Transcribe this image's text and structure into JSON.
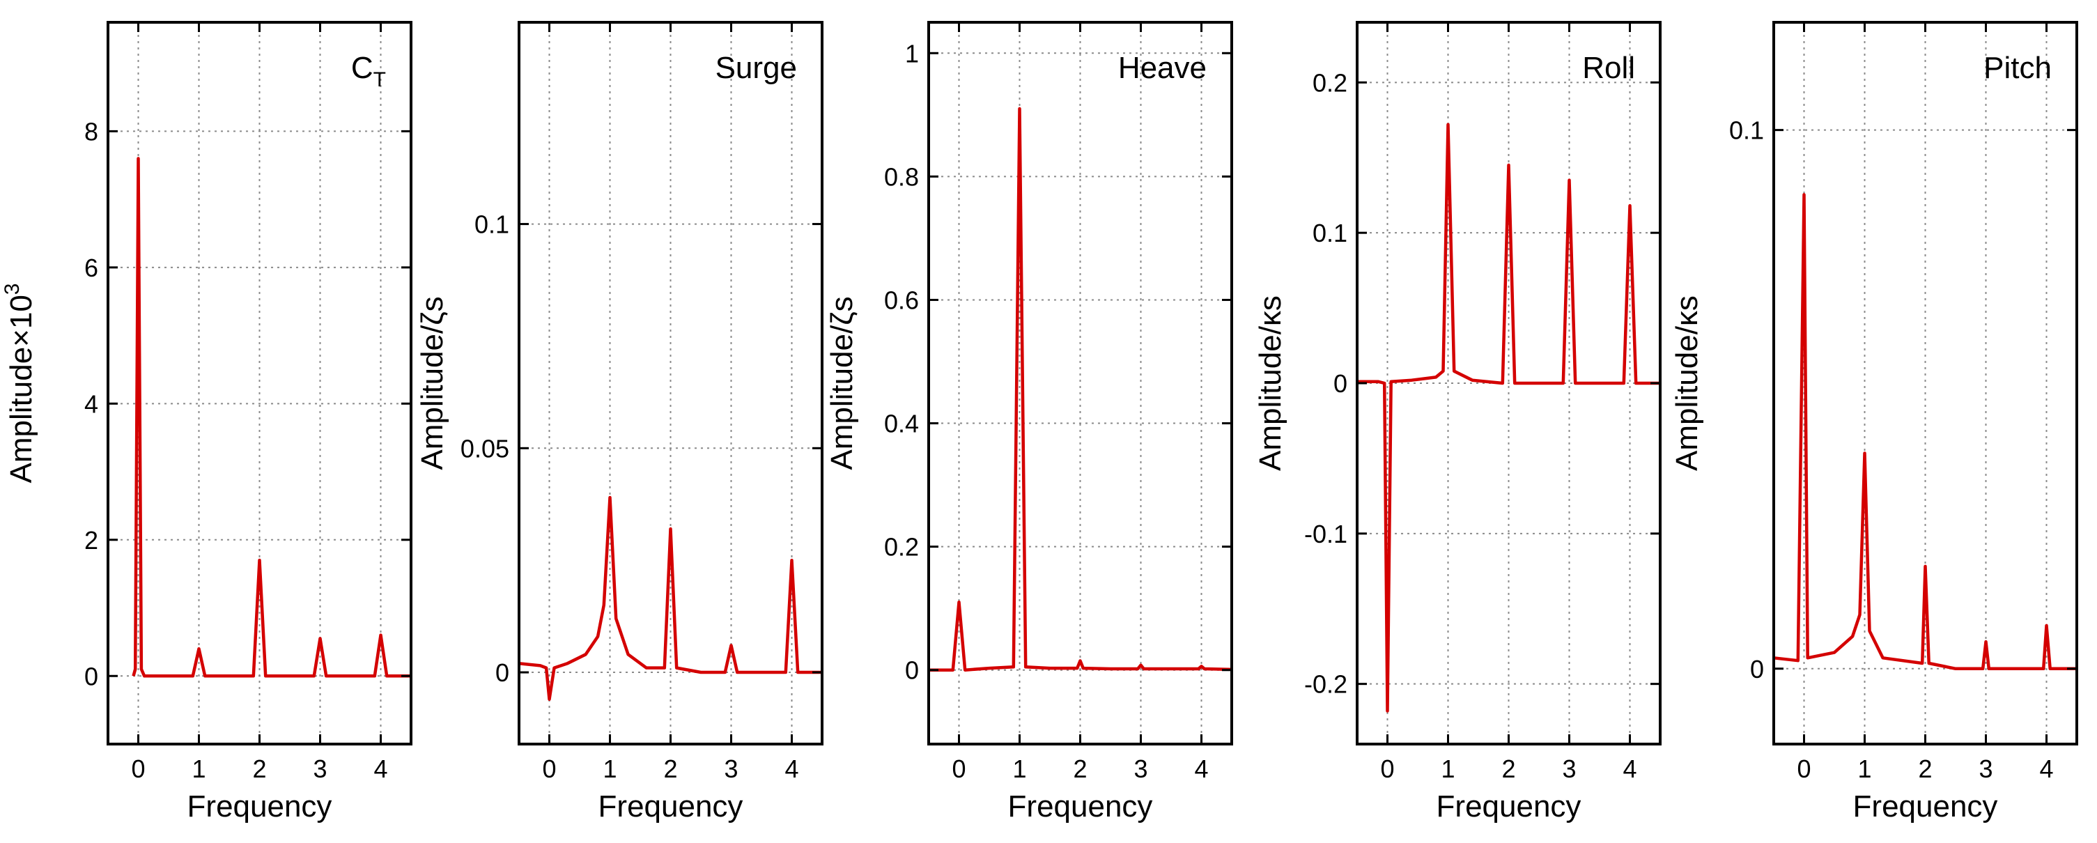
{
  "chart_data": [
    {
      "type": "line",
      "title": "C",
      "title_sub": "T",
      "xlabel": "Frequency",
      "ylabel": "Amplitude×10",
      "ylabel_sup": "3",
      "xlim": [
        -0.5,
        4.5
      ],
      "ylim": [
        -1,
        9.6
      ],
      "xticks": [
        0,
        1,
        2,
        3,
        4
      ],
      "xtick_labels": [
        "0",
        "1",
        "2",
        "3",
        "4"
      ],
      "yticks": [
        0,
        2,
        4,
        6,
        8
      ],
      "ytick_labels": [
        "0",
        "2",
        "4",
        "6",
        "8"
      ],
      "grid": true,
      "series": [
        {
          "name": "C_T",
          "color": "#d40000",
          "x": [
            -0.08,
            -0.05,
            0,
            0.05,
            0.1,
            0.9,
            1,
            1.1,
            1.9,
            2,
            2.1,
            2.9,
            3,
            3.1,
            3.9,
            4,
            4.1,
            4.5
          ],
          "y": [
            0,
            0.1,
            7.6,
            0.1,
            0,
            0,
            0.4,
            0,
            0,
            1.7,
            0,
            0,
            0.55,
            0,
            0,
            0.6,
            0,
            0
          ]
        }
      ]
    },
    {
      "type": "line",
      "title": "Surge",
      "xlabel": "Frequency",
      "ylabel": "Amplitude/ζs",
      "xlim": [
        -0.5,
        4.5
      ],
      "ylim": [
        -0.016,
        0.145
      ],
      "xticks": [
        0,
        1,
        2,
        3,
        4
      ],
      "xtick_labels": [
        "0",
        "1",
        "2",
        "3",
        "4"
      ],
      "yticks": [
        0,
        0.05,
        0.1
      ],
      "ytick_labels": [
        "0",
        "0.05",
        "0.1"
      ],
      "grid": true,
      "series": [
        {
          "name": "Surge",
          "color": "#d40000",
          "x": [
            -0.5,
            -0.15,
            -0.05,
            0,
            0.08,
            0.3,
            0.6,
            0.8,
            0.9,
            1,
            1.1,
            1.3,
            1.6,
            1.9,
            2,
            2.1,
            2.5,
            2.9,
            3,
            3.1,
            3.5,
            3.9,
            4,
            4.1,
            4.5
          ],
          "y": [
            0.002,
            0.0015,
            0.001,
            -0.006,
            0.001,
            0.002,
            0.004,
            0.008,
            0.015,
            0.039,
            0.012,
            0.004,
            0.001,
            0.001,
            0.032,
            0.001,
            0,
            0,
            0.006,
            0,
            0,
            0,
            0.025,
            0,
            0
          ]
        }
      ]
    },
    {
      "type": "line",
      "title": "Heave",
      "xlabel": "Frequency",
      "ylabel": "Amplitude/ζs",
      "xlim": [
        -0.5,
        4.5
      ],
      "ylim": [
        -0.12,
        1.05
      ],
      "xticks": [
        0,
        1,
        2,
        3,
        4
      ],
      "xtick_labels": [
        "0",
        "1",
        "2",
        "3",
        "4"
      ],
      "yticks": [
        0,
        0.2,
        0.4,
        0.6,
        0.8,
        1
      ],
      "ytick_labels": [
        "0",
        "0.2",
        "0.4",
        "0.6",
        "0.8",
        "1"
      ],
      "grid": true,
      "series": [
        {
          "name": "Heave",
          "color": "#d40000",
          "x": [
            -0.5,
            -0.1,
            0,
            0.1,
            0.5,
            0.9,
            1,
            1.1,
            1.5,
            1.95,
            2,
            2.05,
            2.5,
            2.95,
            3,
            3.05,
            3.5,
            3.95,
            4,
            4.05,
            4.5
          ],
          "y": [
            0,
            0,
            0.11,
            0,
            0.003,
            0.005,
            0.91,
            0.005,
            0.003,
            0.003,
            0.015,
            0.003,
            0.002,
            0.002,
            0.008,
            0.002,
            0.002,
            0.002,
            0.006,
            0.002,
            0.001
          ]
        }
      ]
    },
    {
      "type": "line",
      "title": "Roll",
      "xlabel": "Frequency",
      "ylabel": "Amplitude/κs",
      "xlim": [
        -0.5,
        4.5
      ],
      "ylim": [
        -0.24,
        0.24
      ],
      "xticks": [
        0,
        1,
        2,
        3,
        4
      ],
      "xtick_labels": [
        "0",
        "1",
        "2",
        "3",
        "4"
      ],
      "yticks": [
        -0.2,
        -0.1,
        0,
        0.1,
        0.2
      ],
      "ytick_labels": [
        "-0.2",
        "-0.1",
        "0",
        "0.1",
        "0.2"
      ],
      "grid": true,
      "series": [
        {
          "name": "Roll",
          "color": "#d40000",
          "x": [
            -0.5,
            -0.15,
            -0.05,
            0,
            0.06,
            0.4,
            0.8,
            0.92,
            1,
            1.1,
            1.4,
            1.9,
            2,
            2.1,
            2.9,
            3,
            3.1,
            3.9,
            4,
            4.1,
            4.5
          ],
          "y": [
            0.001,
            0.001,
            0,
            -0.218,
            0.001,
            0.002,
            0.004,
            0.008,
            0.172,
            0.008,
            0.002,
            0,
            0.145,
            0,
            0,
            0.135,
            0,
            0,
            0.118,
            0,
            0
          ]
        }
      ]
    },
    {
      "type": "line",
      "title": "Pitch",
      "xlabel": "Frequency",
      "ylabel": "Amplitude/κs",
      "xlim": [
        -0.5,
        4.5
      ],
      "ylim": [
        -0.014,
        0.12
      ],
      "xticks": [
        0,
        1,
        2,
        3,
        4
      ],
      "xtick_labels": [
        "0",
        "1",
        "2",
        "3",
        "4"
      ],
      "yticks": [
        0,
        0.1
      ],
      "ytick_labels": [
        "0",
        "0.1"
      ],
      "grid": true,
      "series": [
        {
          "name": "Pitch",
          "color": "#d40000",
          "x": [
            -0.5,
            -0.1,
            0,
            0.06,
            0.5,
            0.8,
            0.92,
            1,
            1.08,
            1.3,
            1.95,
            2,
            2.06,
            2.5,
            2.95,
            3,
            3.05,
            3.5,
            3.95,
            4,
            4.06,
            4.5
          ],
          "y": [
            0.002,
            0.0015,
            0.088,
            0.002,
            0.003,
            0.006,
            0.01,
            0.04,
            0.007,
            0.002,
            0.001,
            0.019,
            0.001,
            0,
            0,
            0.005,
            0,
            0,
            0,
            0.008,
            0,
            0
          ]
        }
      ]
    }
  ]
}
